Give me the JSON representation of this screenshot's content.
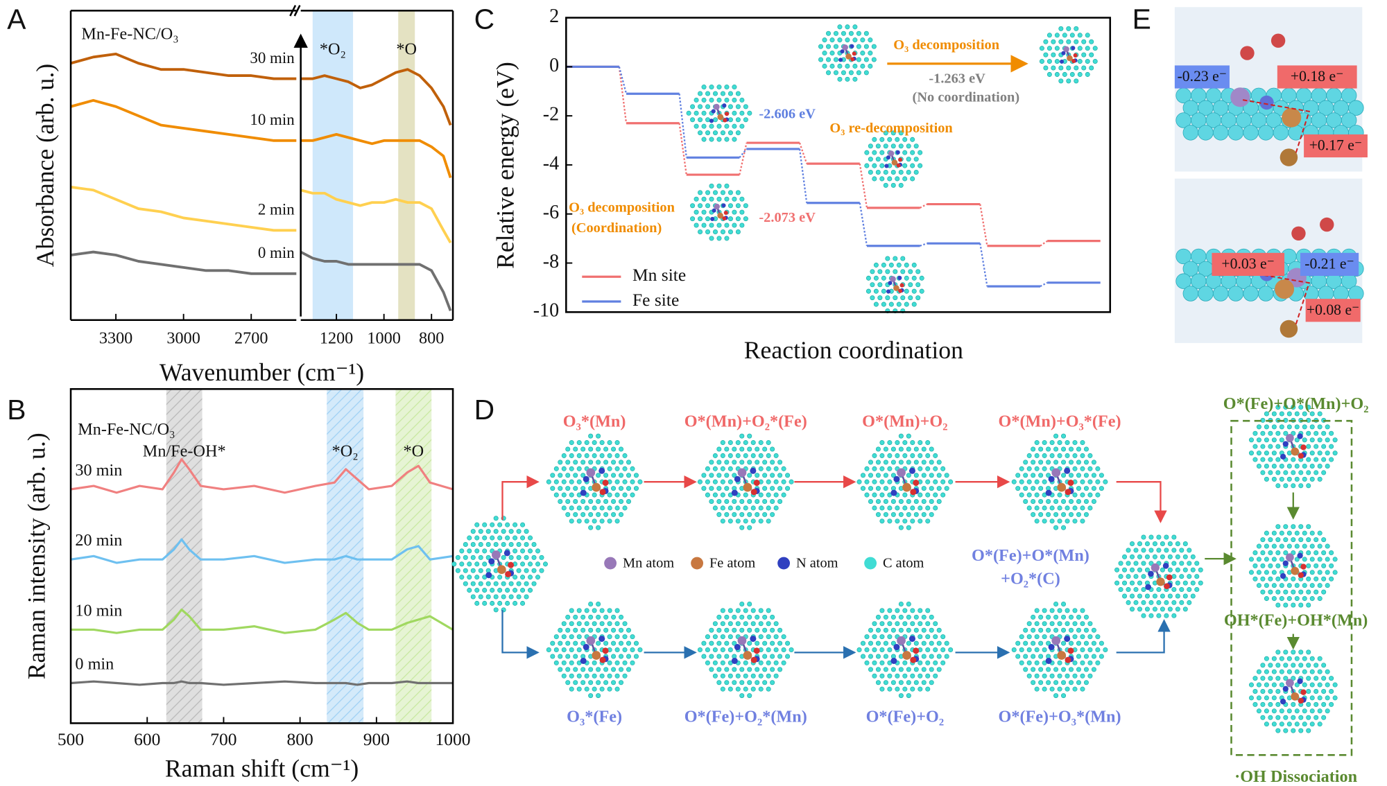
{
  "panel_labels": [
    "A",
    "B",
    "C",
    "D",
    "E"
  ],
  "chart_data": [
    {
      "type": "line",
      "title": "Mn-Fe-NC/O₃",
      "x_label": "Wavenumber (cm⁻¹)",
      "y_label": "Absorbance (arb. u.)",
      "broken_x_axis": true,
      "x_segments": [
        {
          "xlim": [
            3500,
            2500
          ],
          "xticks": [
            3300,
            3000,
            2700
          ]
        },
        {
          "xlim": [
            1350,
            710
          ],
          "xticks": [
            1200,
            1000,
            800
          ]
        }
      ],
      "ylim": [
        0,
        10
      ],
      "x": [
        3500,
        3400,
        3300,
        3200,
        3100,
        3000,
        2900,
        2800,
        2700,
        2600,
        2500,
        1350,
        1300,
        1250,
        1200,
        1150,
        1100,
        1050,
        1000,
        950,
        900,
        850,
        800,
        750,
        720
      ],
      "series": [
        {
          "name": "30 min",
          "color": "#c0600a",
          "values": [
            8.3,
            8.5,
            8.6,
            8.3,
            8.1,
            8.1,
            8.0,
            7.9,
            7.9,
            7.8,
            7.8,
            7.8,
            7.8,
            7.9,
            7.8,
            7.7,
            7.5,
            7.6,
            7.8,
            8.0,
            8.1,
            7.9,
            7.5,
            6.9,
            6.3
          ]
        },
        {
          "name": "10 min",
          "color": "#f08c00",
          "values": [
            6.9,
            7.1,
            6.9,
            6.6,
            6.3,
            6.2,
            6.1,
            6.0,
            5.9,
            5.8,
            5.8,
            5.8,
            5.8,
            5.9,
            6.0,
            5.9,
            5.8,
            5.7,
            5.8,
            5.8,
            5.8,
            5.8,
            5.6,
            5.3,
            4.6
          ]
        },
        {
          "name": "2 min",
          "color": "#ffd050",
          "values": [
            4.3,
            4.2,
            3.9,
            3.6,
            3.5,
            3.3,
            3.2,
            3.1,
            3.0,
            2.9,
            2.9,
            4.2,
            4.1,
            4.1,
            3.9,
            3.8,
            3.7,
            3.8,
            3.8,
            3.9,
            3.8,
            3.8,
            3.6,
            2.9,
            2.5
          ]
        },
        {
          "name": "0 min",
          "color": "#707070",
          "values": [
            2.1,
            2.2,
            2.1,
            1.9,
            1.8,
            1.7,
            1.6,
            1.6,
            1.5,
            1.5,
            1.5,
            2.2,
            2.0,
            1.9,
            1.9,
            1.8,
            1.8,
            1.8,
            1.8,
            1.8,
            1.8,
            1.8,
            1.6,
            0.9,
            0.3
          ]
        }
      ],
      "bands": [
        {
          "from": 1300,
          "to": 1130,
          "color": "#cfe8fb",
          "label": "*O₂"
        },
        {
          "from": 940,
          "to": 870,
          "color": "#e4e2c2",
          "label": "*O"
        }
      ]
    },
    {
      "type": "line",
      "title": "Mn-Fe-NC/O₃",
      "x_label": "Raman shift (cm⁻¹)",
      "y_label": "Raman intensity (arb. u.)",
      "xlim": [
        500,
        1000
      ],
      "xticks": [
        500,
        600,
        700,
        800,
        900,
        1000
      ],
      "ylim": [
        0,
        10
      ],
      "x": [
        500,
        530,
        560,
        590,
        620,
        635,
        645,
        655,
        670,
        700,
        740,
        780,
        820,
        845,
        860,
        875,
        890,
        920,
        940,
        955,
        970,
        1000
      ],
      "series": [
        {
          "name": "30 min",
          "color": "#f08080",
          "values": [
            7.0,
            7.1,
            6.9,
            7.1,
            7.0,
            7.5,
            7.9,
            7.6,
            7.1,
            7.0,
            7.1,
            6.9,
            7.1,
            7.2,
            7.6,
            7.3,
            7.0,
            7.1,
            7.5,
            7.7,
            7.2,
            7.0
          ]
        },
        {
          "name": "20 min",
          "color": "#6ec0f0",
          "values": [
            4.9,
            5.0,
            4.8,
            4.9,
            4.9,
            5.2,
            5.5,
            5.2,
            4.9,
            4.9,
            5.0,
            4.8,
            4.9,
            4.9,
            5.0,
            4.9,
            4.9,
            4.9,
            5.2,
            5.3,
            4.9,
            5.0
          ]
        },
        {
          "name": "10 min",
          "color": "#a0d860",
          "values": [
            2.8,
            2.8,
            2.7,
            2.8,
            2.8,
            3.1,
            3.4,
            3.2,
            2.8,
            2.8,
            2.9,
            2.7,
            2.8,
            3.1,
            3.3,
            3.0,
            2.8,
            2.8,
            3.0,
            3.1,
            3.2,
            2.8
          ]
        },
        {
          "name": "0 min",
          "color": "#707070",
          "values": [
            1.2,
            1.25,
            1.2,
            1.15,
            1.2,
            1.2,
            1.25,
            1.2,
            1.2,
            1.15,
            1.2,
            1.25,
            1.2,
            1.2,
            1.2,
            1.15,
            1.2,
            1.2,
            1.25,
            1.2,
            1.2,
            1.2
          ]
        }
      ],
      "bands": [
        {
          "from": 625,
          "to": 672,
          "color": "#b8b8b8",
          "label": "Mn/Fe-OH*"
        },
        {
          "from": 835,
          "to": 883,
          "color": "#9fd0f4",
          "label": "*O₂"
        },
        {
          "from": 925,
          "to": 972,
          "color": "#c8e8a0",
          "label": "*O"
        }
      ]
    },
    {
      "type": "step",
      "x_label": "Reaction coordination",
      "y_label": "Relative energy (eV)",
      "categories": [
        null,
        null,
        null,
        null,
        null,
        null,
        null,
        null,
        null
      ],
      "ylim": [
        -10,
        2
      ],
      "yticks": [
        2,
        0,
        -2,
        -4,
        -6,
        -8,
        -10
      ],
      "legend": "lower left",
      "series": [
        {
          "name": "Mn site",
          "color": "#f07070",
          "values": [
            0,
            -2.3,
            -4.4,
            -3.1,
            -3.95,
            -5.75,
            -5.6,
            -7.3,
            -7.1
          ]
        },
        {
          "name": "Fe site",
          "color": "#6080e0",
          "values": [
            0,
            -1.1,
            -3.7,
            -3.35,
            -5.55,
            -7.3,
            -7.2,
            -8.95,
            -8.8
          ]
        }
      ],
      "annotations": [
        {
          "text": "-2.606 eV",
          "color": "#6080e0"
        },
        {
          "text": "-2.073 eV",
          "color": "#f07070"
        },
        {
          "text": "O₃ decomposition",
          "color": "#f08c00"
        },
        {
          "text": "-1.263 eV",
          "color": "#808080"
        },
        {
          "text": "(No coordination)",
          "color": "#808080"
        },
        {
          "text": "O₃ re-decomposition",
          "color": "#f08c00"
        },
        {
          "text": "O₃ decomposition",
          "color": "#f08c00"
        },
        {
          "text": "(Coordination)",
          "color": "#f08c00"
        }
      ]
    }
  ],
  "diagram_d": {
    "top_labels": [
      "O₃*(Mn)",
      "O*(Mn)+O₂*(Fe)",
      "O*(Mn)+O₂",
      "O*(Mn)+O₃*(Fe)"
    ],
    "bottom_labels": [
      "O₃*(Fe)",
      "O*(Fe)+O₂*(Mn)",
      "O*(Fe)+O₂",
      "O*(Fe)+O₃*(Mn)"
    ],
    "merge_label": [
      "O*(Fe)+O*(Mn)",
      "+O₂*(C)"
    ],
    "right_labels": [
      "O*(Fe)+O*(Mn)+O₂",
      "OH*(Fe)+OH*(Mn)",
      "·OH Dissociation"
    ],
    "legend": [
      "Mn atom",
      "Fe atom",
      "N atom",
      "C atom"
    ]
  },
  "panel_e": {
    "top": [
      "-0.23 e⁻",
      "+0.18 e⁻",
      "+0.17 e⁻"
    ],
    "bottom": [
      "+0.03 e⁻",
      "-0.21 e⁻",
      "+0.08 e⁻"
    ]
  }
}
